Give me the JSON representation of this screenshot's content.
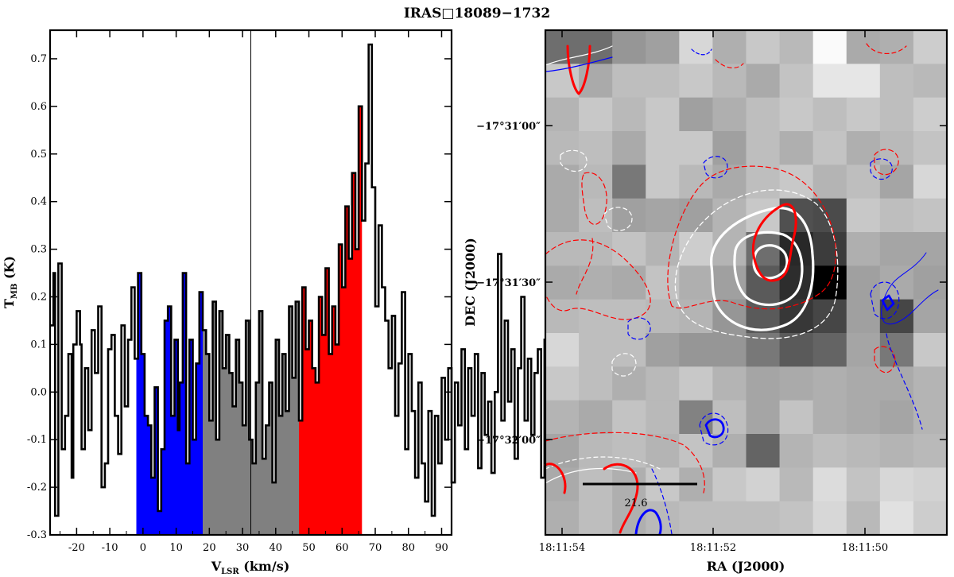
{
  "figure": {
    "title": "IRAS□18089−1732"
  },
  "chart_data": [
    {
      "type": "line",
      "name": "spectrum",
      "xlabel": "V",
      "xlabel_sub": "LSR",
      "xlabel_unit": " (km/s)",
      "ylabel": "T",
      "ylabel_sub": "MB",
      "ylabel_unit": " (K)",
      "xlim": [
        -28,
        93
      ],
      "ylim": [
        -0.3,
        0.76
      ],
      "xticks": [
        -20,
        -10,
        0,
        10,
        20,
        30,
        40,
        50,
        60,
        70,
        80,
        90
      ],
      "yticks": [
        -0.3,
        -0.2,
        -0.1,
        0.0,
        0.1,
        0.2,
        0.3,
        0.4,
        0.5,
        0.6,
        0.7
      ],
      "ytick_labels": [
        "-0.3",
        "-0.2",
        "-0.1",
        "0.0",
        "0.1",
        "0.2",
        "0.3",
        "0.4",
        "0.5",
        "0.6",
        "0.7"
      ],
      "vline_x": 32.5,
      "shaded_ranges": [
        {
          "name": "blue wing",
          "from": -2,
          "to": 18,
          "color": "#0000ff"
        },
        {
          "name": "core",
          "from": 18,
          "to": 47,
          "color": "#808080"
        },
        {
          "name": "red wing",
          "from": 47,
          "to": 66,
          "color": "#ff0000"
        }
      ],
      "step_x_start": -28,
      "step_dx": 0.5,
      "step_values": [
        0.14,
        0.14,
        0.25,
        -0.26,
        -0.26,
        0.27,
        0.27,
        -0.12,
        -0.12,
        -0.05,
        -0.05,
        0.08,
        0.08,
        -0.18,
        0.1,
        0.1,
        0.17,
        0.17,
        0.1,
        -0.12,
        -0.12,
        0.05,
        0.05,
        -0.08,
        -0.08,
        0.13,
        0.13,
        0.04,
        0.04,
        0.18,
        0.18,
        -0.2,
        -0.2,
        -0.15,
        -0.15,
        0.09,
        0.09,
        0.12,
        0.12,
        -0.05,
        -0.05,
        -0.13,
        -0.13,
        0.14,
        0.14,
        -0.03,
        -0.03,
        0.11,
        0.11,
        0.22,
        0.22,
        0.07,
        0.07,
        0.25,
        0.25,
        0.08,
        0.08,
        -0.05,
        -0.05,
        -0.07,
        -0.07,
        -0.18,
        -0.18,
        0.01,
        0.01,
        -0.25,
        -0.25,
        -0.12,
        -0.12,
        0.15,
        0.15,
        0.18,
        0.18,
        -0.05,
        -0.05,
        0.11,
        0.11,
        -0.08,
        0.02,
        0.02,
        0.25,
        0.25,
        -0.15,
        -0.15,
        0.11,
        0.11,
        -0.1,
        -0.1,
        0.06,
        0.06,
        0.21,
        0.21,
        0.13,
        0.13,
        0.08,
        0.08,
        -0.06,
        -0.06,
        0.19,
        0.19,
        -0.1,
        -0.1,
        0.17,
        0.17,
        0.05,
        0.05,
        0.12,
        0.12,
        0.04,
        0.04,
        -0.03,
        -0.03,
        0.11,
        0.11,
        0.02,
        0.02,
        -0.07,
        -0.07,
        0.15,
        0.15,
        -0.1,
        -0.1,
        -0.15,
        -0.15,
        0.02,
        0.02,
        0.17,
        0.17,
        -0.14,
        -0.14,
        -0.07,
        -0.07,
        0.02,
        0.02,
        -0.19,
        -0.19,
        0.11,
        0.11,
        -0.05,
        -0.05,
        0.08,
        0.08,
        -0.04,
        -0.04,
        0.18,
        0.18,
        0.03,
        0.03,
        0.19,
        0.19,
        -0.06,
        -0.06,
        0.22,
        0.22,
        0.09,
        0.09,
        0.15,
        0.15,
        0.05,
        0.05,
        0.02,
        0.02,
        0.2,
        0.2,
        0.12,
        0.12,
        0.26,
        0.26,
        0.08,
        0.08,
        0.18,
        0.18,
        0.1,
        0.1,
        0.31,
        0.31,
        0.22,
        0.22,
        0.39,
        0.39,
        0.28,
        0.28,
        0.46,
        0.46,
        0.3,
        0.3,
        0.6,
        0.6,
        0.36,
        0.36,
        0.48,
        0.48,
        0.73,
        0.73,
        0.43,
        0.43,
        0.18,
        0.18,
        0.35,
        0.35,
        0.22,
        0.22,
        0.15,
        0.15,
        0.05,
        0.05,
        0.16,
        0.16,
        -0.05,
        -0.05,
        0.06,
        0.06,
        0.21,
        0.21,
        -0.12,
        -0.12,
        0.08,
        0.08,
        -0.04,
        -0.04,
        -0.18,
        -0.18,
        0.02,
        0.02,
        -0.15,
        -0.15,
        -0.23,
        -0.23,
        -0.04,
        -0.04,
        -0.26,
        -0.26,
        -0.05,
        -0.05,
        -0.15,
        -0.15,
        0.03,
        0.03,
        -0.1,
        -0.1,
        0.05,
        0.05,
        -0.19,
        -0.19,
        0.02,
        0.02,
        -0.07,
        -0.07,
        0.09,
        0.09,
        -0.12,
        -0.12,
        0.05,
        0.05,
        -0.05,
        -0.05,
        0.08,
        0.08,
        -0.16,
        -0.16,
        0.04,
        0.04,
        -0.09,
        -0.09,
        -0.02,
        -0.02,
        -0.17,
        -0.17,
        0.0,
        0.0,
        0.29,
        0.29,
        -0.06,
        -0.06,
        0.15,
        0.15,
        -0.02,
        -0.02,
        0.09,
        0.09,
        -0.14,
        -0.14,
        0.05,
        0.05,
        0.2,
        0.2,
        -0.06,
        -0.06,
        0.07,
        0.07,
        -0.09,
        -0.09,
        0.04,
        0.04,
        0.09,
        0.09,
        -0.18,
        -0.18,
        0.11,
        0.11,
        0.02,
        0.02,
        0.13,
        0.13,
        -0.23,
        -0.23,
        -0.02,
        -0.02,
        0.04,
        0.04,
        -0.13,
        -0.13,
        0.07,
        0.07,
        -0.04,
        -0.04,
        0.21,
        0.21,
        0.05,
        0.05,
        0.09,
        0.09,
        -0.2,
        -0.2,
        0.08,
        0.08,
        0.13,
        0.13,
        0.12,
        0.12,
        -0.03,
        -0.03,
        0.05,
        0.05,
        -0.06,
        -0.06,
        0.1,
        0.1
      ]
    },
    {
      "type": "heatmap",
      "name": "map",
      "xlabel": "RA (J2000)",
      "ylabel": "DEC (J2000)",
      "xtick_labels": [
        "18:11:54",
        "18:11:52",
        "18:11:50"
      ],
      "ytick_labels": [
        "−17°31′00″",
        "−17°31′30″",
        "−17°32′00″"
      ],
      "scale_bar_label": "21.6",
      "n_cols": 12,
      "n_rows": 15,
      "cell_gray": [
        [
          110,
          110,
          150,
          160,
          215,
          175,
          200,
          185,
          250,
          170,
          175,
          205
        ],
        [
          200,
          170,
          190,
          190,
          200,
          185,
          170,
          195,
          230,
          230,
          190,
          185
        ],
        [
          180,
          200,
          185,
          200,
          160,
          175,
          190,
          200,
          190,
          200,
          190,
          205
        ],
        [
          185,
          190,
          170,
          200,
          200,
          160,
          190,
          175,
          195,
          175,
          185,
          195
        ],
        [
          170,
          185,
          120,
          200,
          185,
          170,
          190,
          200,
          180,
          190,
          165,
          215
        ],
        [
          170,
          190,
          160,
          165,
          160,
          180,
          200,
          80,
          75,
          200,
          190,
          195
        ],
        [
          185,
          185,
          195,
          180,
          205,
          180,
          110,
          40,
          60,
          175,
          165,
          165
        ],
        [
          170,
          175,
          170,
          195,
          175,
          160,
          90,
          45,
          0,
          160,
          170,
          160
        ],
        [
          185,
          190,
          190,
          185,
          180,
          150,
          90,
          55,
          70,
          160,
          70,
          165
        ],
        [
          215,
          190,
          190,
          160,
          150,
          150,
          120,
          90,
          100,
          165,
          120,
          200
        ],
        [
          200,
          190,
          175,
          185,
          200,
          180,
          165,
          170,
          175,
          170,
          170,
          180
        ],
        [
          180,
          170,
          195,
          185,
          130,
          190,
          165,
          195,
          175,
          170,
          165,
          180
        ],
        [
          165,
          185,
          190,
          180,
          195,
          175,
          100,
          180,
          190,
          185,
          180,
          185
        ],
        [
          170,
          190,
          175,
          200,
          175,
          200,
          210,
          185,
          220,
          195,
          215,
          210
        ],
        [
          175,
          190,
          175,
          185,
          190,
          190,
          190,
          195,
          215,
          185,
          225,
          205
        ]
      ]
    }
  ]
}
